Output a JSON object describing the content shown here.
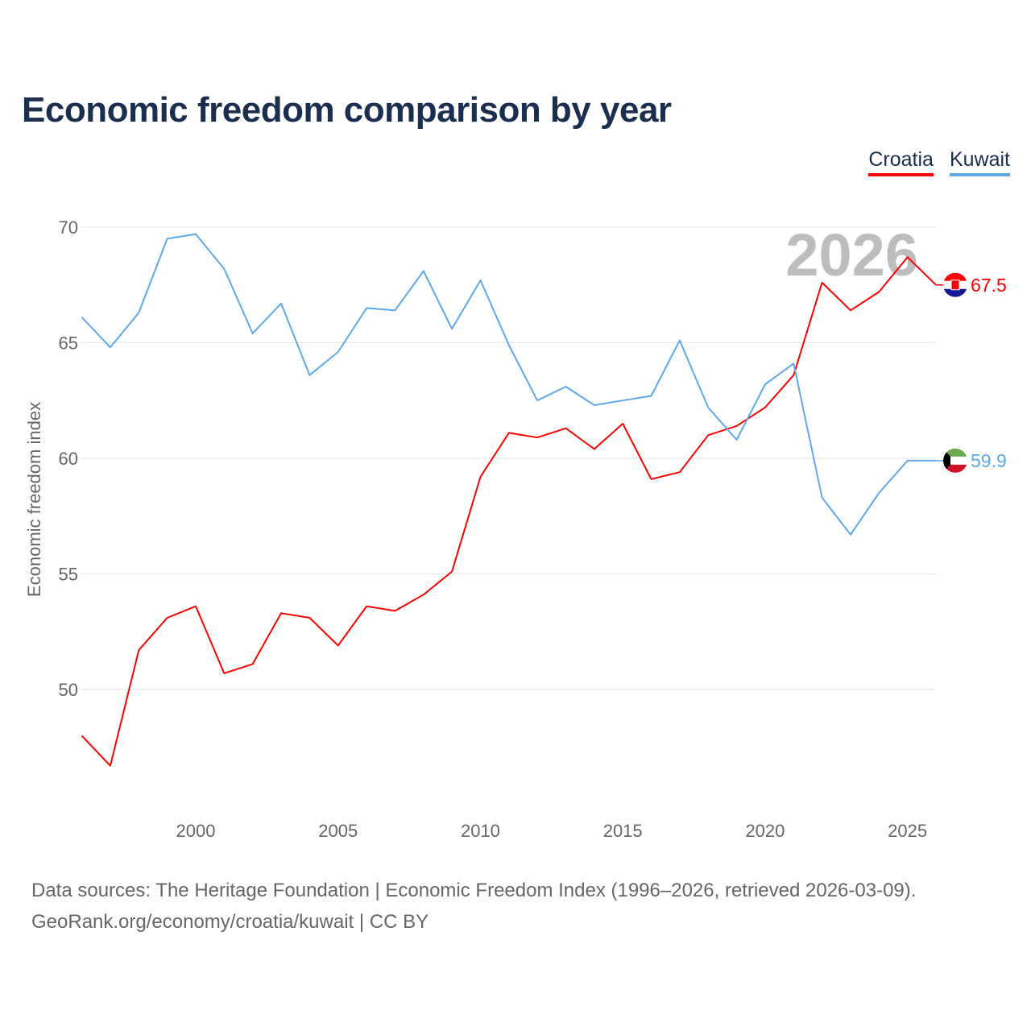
{
  "chart_data": {
    "type": "line",
    "title": "Economic freedom comparison by year",
    "xlabel": "",
    "ylabel": "Economic freedom index",
    "xlim": [
      1996,
      2026
    ],
    "ylim": [
      45,
      71
    ],
    "yticks": [
      50,
      55,
      60,
      65,
      70
    ],
    "xticks": [
      2000,
      2005,
      2010,
      2015,
      2020,
      2025
    ],
    "grid": true,
    "legend_position": "top-right",
    "year_watermark": "2026",
    "x": [
      1996,
      1997,
      1998,
      1999,
      2000,
      2001,
      2002,
      2003,
      2004,
      2005,
      2006,
      2007,
      2008,
      2009,
      2010,
      2011,
      2012,
      2013,
      2014,
      2015,
      2016,
      2017,
      2018,
      2019,
      2020,
      2021,
      2022,
      2023,
      2024,
      2025,
      2026
    ],
    "series": [
      {
        "name": "Croatia",
        "color": "#ff0000",
        "end_label": "67.5",
        "values": [
          48.0,
          46.7,
          51.7,
          53.1,
          53.6,
          50.7,
          51.1,
          53.3,
          53.1,
          51.9,
          53.6,
          53.4,
          54.1,
          55.1,
          59.2,
          61.1,
          60.9,
          61.3,
          60.4,
          61.5,
          59.1,
          59.4,
          61.0,
          61.4,
          62.2,
          63.6,
          67.6,
          66.4,
          67.2,
          68.7,
          67.5
        ]
      },
      {
        "name": "Kuwait",
        "color": "#5ea8ec",
        "end_label": "59.9",
        "values": [
          66.1,
          64.8,
          66.3,
          69.5,
          69.7,
          68.2,
          65.4,
          66.7,
          63.6,
          64.6,
          66.5,
          66.4,
          68.1,
          65.6,
          67.7,
          64.9,
          62.5,
          63.1,
          62.3,
          62.5,
          62.7,
          65.1,
          62.2,
          60.8,
          63.2,
          64.1,
          58.3,
          56.7,
          58.5,
          59.9,
          59.9
        ]
      }
    ]
  },
  "source_line1": "Data sources: The Heritage Foundation | Economic Freedom Index (1996–2026, retrieved 2026-03-09).",
  "source_line2": "GeoRank.org/economy/croatia/kuwait | CC BY"
}
